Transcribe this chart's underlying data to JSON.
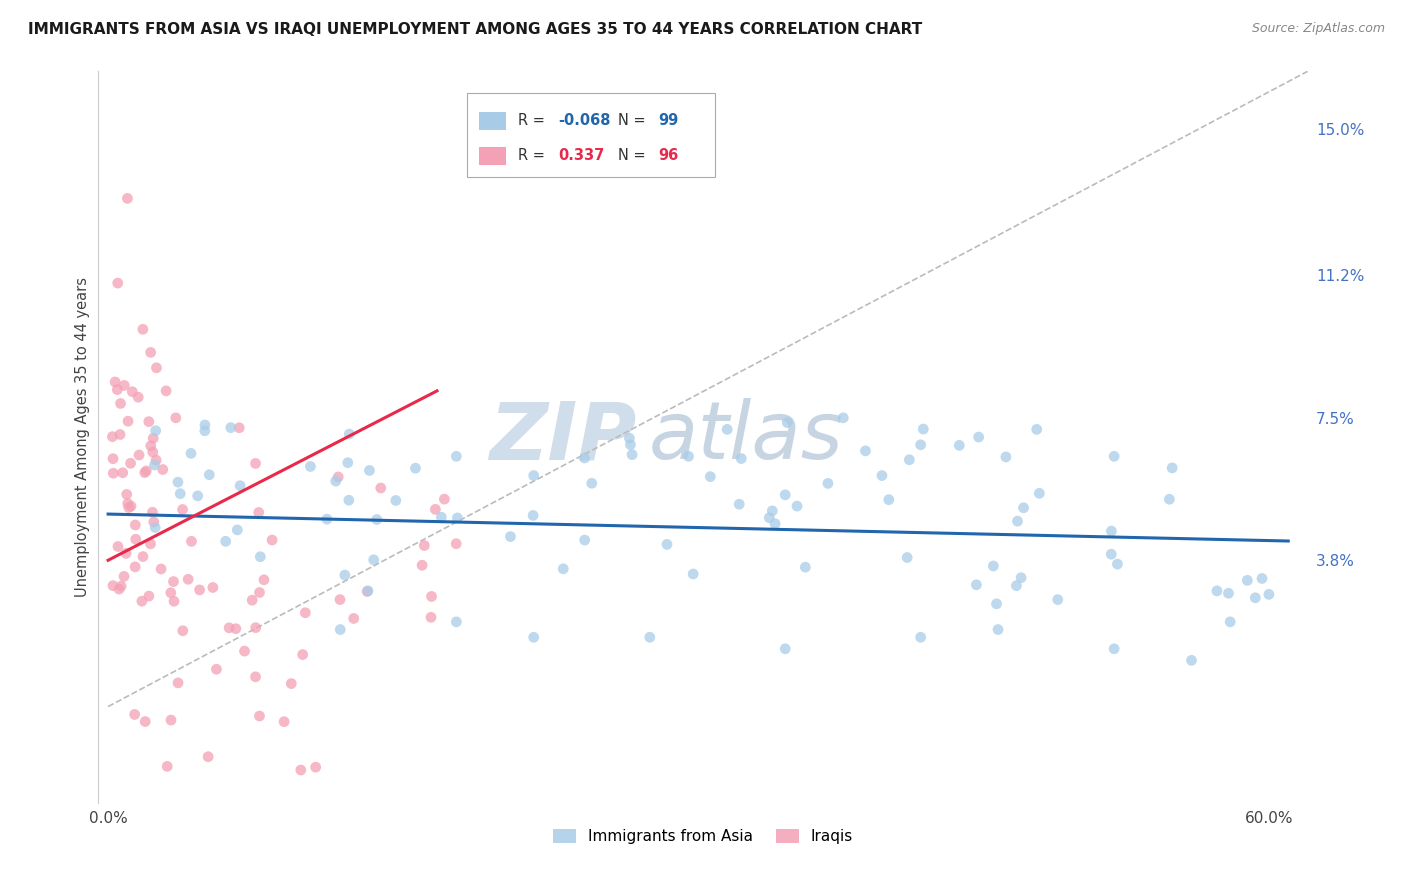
{
  "title": "IMMIGRANTS FROM ASIA VS IRAQI UNEMPLOYMENT AMONG AGES 35 TO 44 YEARS CORRELATION CHART",
  "source": "Source: ZipAtlas.com",
  "ylabel": "Unemployment Among Ages 35 to 44 years",
  "y_tick_labels_right": [
    "15.0%",
    "11.2%",
    "7.5%",
    "3.8%"
  ],
  "y_tick_values_right": [
    0.15,
    0.112,
    0.075,
    0.038
  ],
  "xlim": [
    -0.005,
    0.62
  ],
  "ylim": [
    -0.025,
    0.165
  ],
  "watermark_zip": "ZIP",
  "watermark_atlas": "atlas",
  "bg_color": "#ffffff",
  "grid_color": "#dddddd",
  "blue_scatter_color": "#a8cce8",
  "pink_scatter_color": "#f4a0b5",
  "blue_line_color": "#2166ac",
  "pink_line_color": "#e8294a",
  "diag_line_color": "#bbbbbb",
  "blue_R": "-0.068",
  "blue_N": "99",
  "pink_R": "0.337",
  "pink_N": "96",
  "blue_label": "Immigrants from Asia",
  "pink_label": "Iraqis",
  "blue_line_x": [
    0.0,
    0.61
  ],
  "blue_line_y": [
    0.05,
    0.043
  ],
  "pink_line_x": [
    0.0,
    0.17
  ],
  "pink_line_y": [
    0.038,
    0.082
  ],
  "diag_line_x": [
    0.0,
    0.62
  ],
  "diag_line_y": [
    0.0,
    0.165
  ]
}
